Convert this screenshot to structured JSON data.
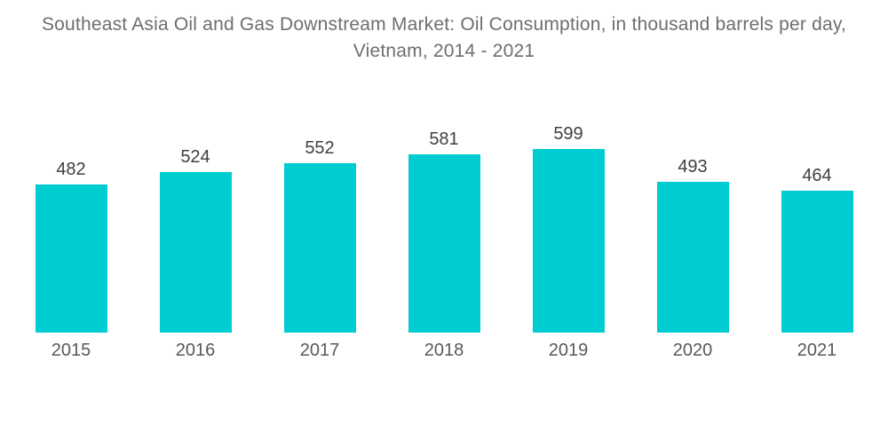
{
  "chart_data": {
    "type": "bar",
    "title": "Southeast Asia Oil and Gas Downstream Market: Oil Consumption, in thousand barrels per day, Vietnam, 2014 - 2021",
    "categories": [
      "2015",
      "2016",
      "2017",
      "2018",
      "2019",
      "2020",
      "2021"
    ],
    "values": [
      482,
      524,
      552,
      581,
      599,
      493,
      464
    ],
    "xlabel": "",
    "ylabel": "",
    "ylim": [
      0,
      620
    ],
    "grid": false,
    "legend": "none",
    "axes_visible": false,
    "colors": {
      "bar": "#00CDD2",
      "value_label": "#404041",
      "category_label": "#58595B",
      "title": "#6D6E71"
    }
  }
}
